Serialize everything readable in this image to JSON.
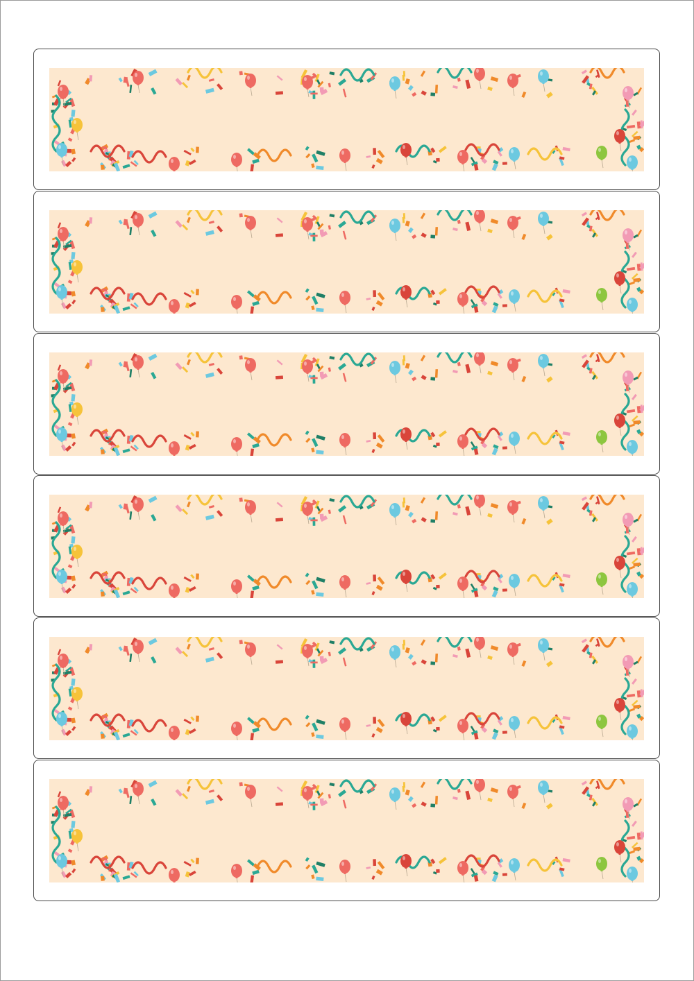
{
  "sheet": {
    "label_count": 6,
    "label_colors": {
      "background": "#fde8cf",
      "red": "#d9453a",
      "coral": "#ee6a62",
      "teal": "#2aa894",
      "dark_teal": "#1f7f66",
      "orange": "#f08a2a",
      "yellow": "#f6c33a",
      "sky": "#6cc9e0",
      "green": "#8dc63f",
      "pink": "#f29bb5"
    },
    "labels": [
      {
        "id": 1,
        "text": ""
      },
      {
        "id": 2,
        "text": ""
      },
      {
        "id": 3,
        "text": ""
      },
      {
        "id": 4,
        "text": ""
      },
      {
        "id": 5,
        "text": ""
      },
      {
        "id": 6,
        "text": ""
      }
    ]
  }
}
